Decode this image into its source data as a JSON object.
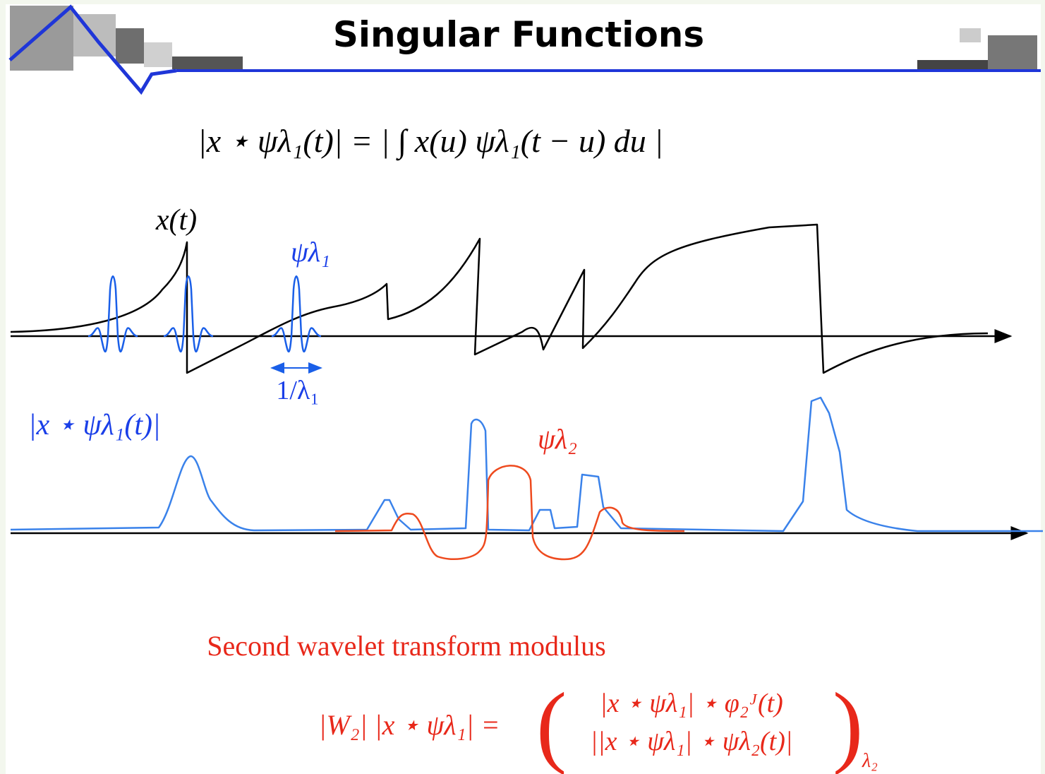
{
  "header": {
    "title": "Singular Functions"
  },
  "equation": "|x ⋆ ψλ₁(t)| = | ∫ x(u) ψλ₁(t − u) du |",
  "labels": {
    "signal": "x(t)",
    "wavelet1": "ψλ₁",
    "scale": "1/λ₁",
    "modulus": "|x ⋆ ψλ₁(t)|",
    "wavelet2": "ψλ₂"
  },
  "caption": "Second wavelet transform modulus",
  "second_equation": {
    "lhs": "|W₂| |x ⋆ ψλ₁| =",
    "rows": [
      "|x ⋆ ψλ₁| ⋆ φ₂ᴶ(t)",
      "||x ⋆ ψλ₁| ⋆ ψλ₂(t)|"
    ],
    "subscript": "λ₂"
  }
}
